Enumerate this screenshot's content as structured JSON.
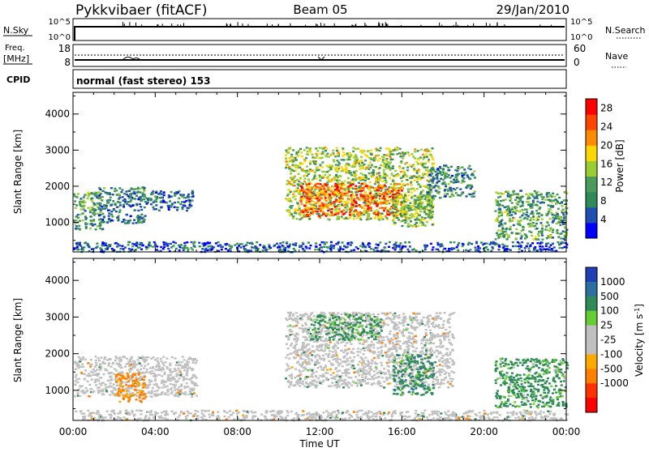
{
  "header": {
    "station": "Pykkvibaer (fitACF)",
    "beam": "Beam 05",
    "date": "29/Jan/2010"
  },
  "strips": {
    "nsky_label": "N.Sky",
    "nsky_ticks": [
      "10^5",
      "10^0"
    ],
    "nsearch_label": "N.Search",
    "nsearch_ticks": [
      "10^5",
      "10^0"
    ],
    "freq_label_line1": "Freq.",
    "freq_label_line2": "[MHz]",
    "freq_ticks": [
      "18",
      "8"
    ],
    "nave_label": "Nave",
    "nave_ticks": [
      "60",
      "0"
    ],
    "cpid_label": "CPID",
    "cpid_text": "normal (fast stereo) 153"
  },
  "colors": {
    "power": [
      "#0000ff",
      "#1f4fb0",
      "#2e8b57",
      "#4a9a5a",
      "#9acd32",
      "#ffd700",
      "#ff8c00",
      "#ff4500",
      "#ff0000"
    ],
    "velocity_pos": [
      "#1f3fb5",
      "#2c6fa0",
      "#2e8b57",
      "#66cc33"
    ],
    "velocity_zero": "#c0c0c0",
    "velocity_neg": [
      "#ffaa00",
      "#ff8000",
      "#ff3300",
      "#ff0000"
    ]
  },
  "chart_data": [
    {
      "type": "heatmap",
      "title": "Power",
      "xlabel": "Time UT",
      "ylabel": "Slant Range [km]",
      "x_ticks": [
        "00:00",
        "04:00",
        "08:00",
        "12:00",
        "16:00",
        "20:00",
        "00:00"
      ],
      "xlim": [
        0,
        24
      ],
      "y_ticks": [
        "1000",
        "2000",
        "3000",
        "4000"
      ],
      "ylim": [
        180,
        4600
      ],
      "colorbar_label": "Power [dB]",
      "colorbar_ticks": [
        "4",
        "8",
        "12",
        "16",
        "20",
        "24",
        "28"
      ],
      "colorbar_range": [
        0,
        30
      ],
      "regions": [
        {
          "t0": 0.0,
          "t1": 1.4,
          "r0": 800,
          "r1": 1900,
          "v": 11
        },
        {
          "t0": 1.2,
          "t1": 3.5,
          "r0": 1000,
          "r1": 2000,
          "v": 8
        },
        {
          "t0": 3.5,
          "t1": 5.8,
          "r0": 1350,
          "r1": 1900,
          "v": 6
        },
        {
          "t0": 10.3,
          "t1": 17.5,
          "r0": 1100,
          "r1": 3100,
          "v": 15
        },
        {
          "t0": 11.0,
          "t1": 16.0,
          "r0": 1200,
          "r1": 2100,
          "v": 24
        },
        {
          "t0": 15.5,
          "t1": 17.5,
          "r0": 900,
          "r1": 1800,
          "v": 13
        },
        {
          "t0": 17.2,
          "t1": 19.5,
          "r0": 1700,
          "r1": 2600,
          "v": 9
        },
        {
          "t0": 20.5,
          "t1": 24.0,
          "r0": 550,
          "r1": 1900,
          "v": 11
        },
        {
          "t0": 0.0,
          "t1": 24.0,
          "r0": 200,
          "r1": 480,
          "v": 5
        }
      ]
    },
    {
      "type": "heatmap",
      "title": "Velocity",
      "xlabel": "Time UT",
      "ylabel": "Slant Range [km]",
      "x_ticks": [
        "00:00",
        "04:00",
        "08:00",
        "12:00",
        "16:00",
        "20:00",
        "00:00"
      ],
      "xlim": [
        0,
        24
      ],
      "y_ticks": [
        "1000",
        "2000",
        "3000",
        "4000"
      ],
      "ylim": [
        180,
        4600
      ],
      "colorbar_label": "Velocity [m s^-1]",
      "colorbar_ticks": [
        "1000",
        "500",
        "100",
        "25",
        "-25",
        "-100",
        "-500",
        "-1000"
      ],
      "regions": [
        {
          "t0": 0.0,
          "t1": 6.0,
          "r0": 850,
          "r1": 1950,
          "v": 0
        },
        {
          "t0": 2.0,
          "t1": 3.5,
          "r0": 700,
          "r1": 1500,
          "v": -150
        },
        {
          "t0": 10.3,
          "t1": 18.5,
          "r0": 1100,
          "r1": 3150,
          "v": 0
        },
        {
          "t0": 11.5,
          "t1": 15.0,
          "r0": 2400,
          "r1": 3100,
          "v": 200
        },
        {
          "t0": 15.5,
          "t1": 17.5,
          "r0": 900,
          "r1": 2000,
          "v": 300
        },
        {
          "t0": 20.5,
          "t1": 24.0,
          "r0": 550,
          "r1": 1900,
          "v": 200
        },
        {
          "t0": 0.0,
          "t1": 24.0,
          "r0": 200,
          "r1": 480,
          "v": 0
        }
      ]
    }
  ]
}
